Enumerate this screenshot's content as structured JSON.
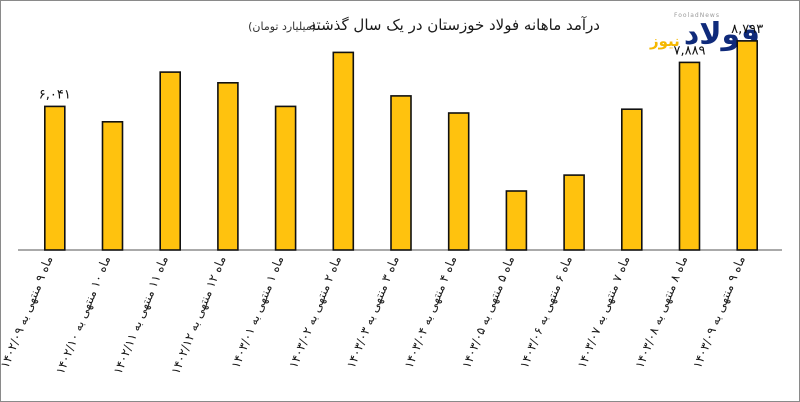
{
  "chart_data": {
    "type": "bar",
    "title": "درآمد ماهانه فولاد خوزستان در یک سال گذشته",
    "subtitle": "(میلیارد تومان)",
    "categories": [
      "ماه ۹ منتهی به ۱۴۰۲/۰۹",
      "ماه ۱۰ منتهی به ۱۴۰۲/۱۰",
      "ماه ۱۱ منتهی به ۱۴۰۲/۱۱",
      "ماه ۱۲ منتهی به ۱۴۰۲/۱۲",
      "ماه ۱ منتهی به ۱۴۰۳/۰۱",
      "ماه ۲ منتهی به ۱۴۰۳/۰۲",
      "ماه ۳ منتهی به ۱۴۰۳/۰۳",
      "ماه ۴ منتهی به ۱۴۰۳/۰۴",
      "ماه ۵ منتهی به ۱۴۰۳/۰۵",
      "ماه ۶ منتهی به ۱۴۰۳/۰۶",
      "ماه ۷ منتهی به ۱۴۰۳/۰۷",
      "ماه ۸ منتهی به ۱۴۰۳/۰۸",
      "ماه ۹ منتهی به ۱۴۰۳/۰۹"
    ],
    "values": [
      6041,
      5390,
      7480,
      7030,
      6040,
      8310,
      6480,
      5760,
      2480,
      3150,
      5920,
      7889,
      8793
    ],
    "data_labels": [
      "۶,۰۴۱",
      "",
      "",
      "",
      "",
      "",
      "",
      "",
      "",
      "",
      "",
      "۷,۸۸۹",
      "۸,۷۹۳"
    ],
    "ylim": [
      0,
      9000
    ],
    "grid": false,
    "legend": "none",
    "bar_color": "#ffc20e",
    "bar_outline": "#111111"
  },
  "logo": {
    "main": "فولاد",
    "accent": "نیوز",
    "small": "FooladNews",
    "main_color": "#0f2a7a",
    "accent_color": "#f5b800"
  }
}
